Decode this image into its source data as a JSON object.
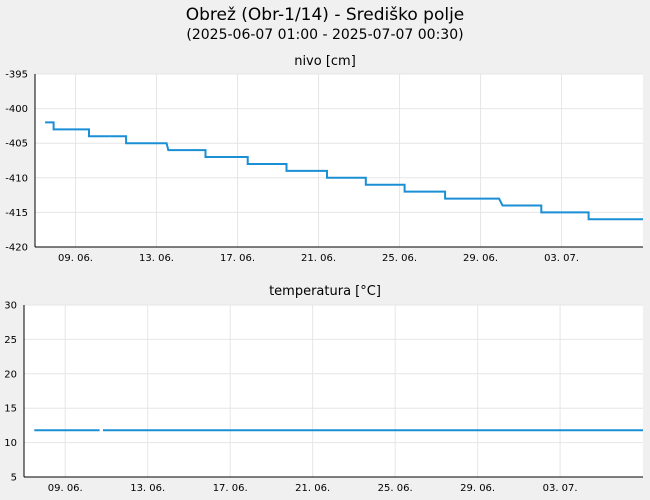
{
  "header": {
    "title": "Obrež (Obr-1/14) - Središko polje",
    "subtitle": "(2025-06-07 01:00 - 2025-07-07 00:30)"
  },
  "chart_data": [
    {
      "type": "line",
      "title": "nivo [cm]",
      "xlabel": "",
      "ylabel": "",
      "xlim": [
        "2025-06-07 00:00",
        "2025-07-07 00:30"
      ],
      "ylim": [
        -420,
        -395
      ],
      "yticks": [
        -395,
        -400,
        -405,
        -410,
        -415,
        -420
      ],
      "xticks": [
        "09. 06.",
        "13. 06.",
        "17. 06.",
        "21. 06.",
        "25. 06.",
        "29. 06.",
        "03. 07."
      ],
      "grid": true,
      "series": [
        {
          "color": "#1a8fd6",
          "segments": [
            [
              [
                "2025-06-07 12:00",
                -402
              ],
              [
                "2025-06-07 22:00",
                -402
              ],
              [
                "2025-06-07 22:00",
                -403
              ],
              [
                "2025-06-09 16:00",
                -403
              ],
              [
                "2025-06-09 16:00",
                -404
              ],
              [
                "2025-06-10 16:00",
                -404
              ]
            ],
            [
              [
                "2025-06-10 16:00",
                -404
              ],
              [
                "2025-06-11 12:00",
                -404
              ],
              [
                "2025-06-11 12:00",
                -405
              ],
              [
                "2025-06-13 12:00",
                -405
              ],
              [
                "2025-06-13 14:00",
                -406
              ],
              [
                "2025-06-15 10:00",
                -406
              ],
              [
                "2025-06-15 10:00",
                -407
              ],
              [
                "2025-06-17 12:00",
                -407
              ],
              [
                "2025-06-17 12:00",
                -408
              ],
              [
                "2025-06-19 10:00",
                -408
              ],
              [
                "2025-06-19 10:00",
                -409
              ],
              [
                "2025-06-21 10:00",
                -409
              ],
              [
                "2025-06-21 10:00",
                -410
              ],
              [
                "2025-06-23 08:00",
                -410
              ],
              [
                "2025-06-23 08:00",
                -411
              ],
              [
                "2025-06-25 06:00",
                -411
              ],
              [
                "2025-06-25 06:00",
                -412
              ],
              [
                "2025-06-27 06:00",
                -412
              ],
              [
                "2025-06-27 06:00",
                -413
              ],
              [
                "2025-06-29 22:00",
                -413
              ],
              [
                "2025-06-30 02:00",
                -414
              ],
              [
                "2025-07-02 00:00",
                -414
              ],
              [
                "2025-07-02 00:00",
                -415
              ],
              [
                "2025-07-04 08:00",
                -415
              ],
              [
                "2025-07-04 08:00",
                -416
              ],
              [
                "2025-07-07 00:30",
                -416
              ]
            ]
          ]
        }
      ]
    },
    {
      "type": "line",
      "title": "temperatura [°C]",
      "xlabel": "",
      "ylabel": "",
      "xlim": [
        "2025-06-07 00:00",
        "2025-07-07 00:30"
      ],
      "ylim": [
        5,
        30
      ],
      "yticks": [
        30,
        25,
        20,
        15,
        10,
        5
      ],
      "xticks": [
        "09. 06.",
        "13. 06.",
        "17. 06.",
        "21. 06.",
        "25. 06.",
        "29. 06.",
        "03. 07."
      ],
      "grid": true,
      "series": [
        {
          "color": "#1a8fd6",
          "segments": [
            [
              [
                "2025-06-07 12:00",
                11.8
              ],
              [
                "2025-06-10 16:00",
                11.8
              ]
            ],
            [
              [
                "2025-06-10 20:00",
                11.8
              ],
              [
                "2025-07-07 00:30",
                11.8
              ]
            ]
          ]
        }
      ]
    }
  ]
}
